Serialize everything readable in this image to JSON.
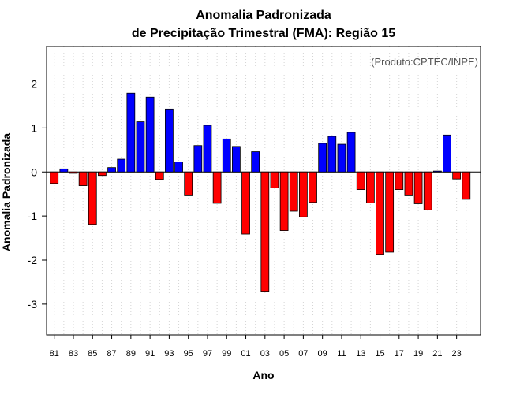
{
  "chart_data": {
    "type": "bar",
    "title": "Anomalia Padronizada",
    "subtitle": "de Precipitação Trimestral (FMA): Região 15",
    "credit": "(Produto:CPTEC/INPE)",
    "xlabel": "Ano",
    "ylabel": "Anomalia Padronizada",
    "ylim": [
      -3.7,
      2.85
    ],
    "yticks": [
      -3,
      -2,
      -1,
      0,
      1,
      2
    ],
    "ytick_labels": [
      "-3",
      "-2",
      "-1",
      "0",
      "1",
      "2"
    ],
    "grid": "vertical dotted",
    "positive_color": "#0000ff",
    "negative_color": "#ff0000",
    "categories": [
      "81",
      "82",
      "83",
      "84",
      "85",
      "86",
      "87",
      "88",
      "89",
      "90",
      "91",
      "92",
      "93",
      "94",
      "95",
      "96",
      "97",
      "98",
      "99",
      "00",
      "01",
      "02",
      "03",
      "04",
      "05",
      "06",
      "07",
      "08",
      "09",
      "10",
      "11",
      "12",
      "13",
      "14",
      "15",
      "16",
      "17",
      "18",
      "19",
      "20",
      "21",
      "22",
      "23",
      "24"
    ],
    "xtick_labels": [
      "81",
      "83",
      "85",
      "87",
      "89",
      "91",
      "93",
      "95",
      "97",
      "99",
      "01",
      "03",
      "05",
      "07",
      "09",
      "11",
      "13",
      "15",
      "17",
      "19",
      "21",
      "23"
    ],
    "values": [
      -0.26,
      0.07,
      -0.03,
      -0.31,
      -1.19,
      -0.08,
      0.1,
      0.29,
      1.79,
      1.14,
      1.7,
      -0.17,
      1.43,
      0.23,
      -0.54,
      0.6,
      1.06,
      -0.71,
      0.75,
      0.58,
      -1.41,
      0.46,
      -2.71,
      -0.36,
      -1.33,
      -0.89,
      -1.02,
      -0.69,
      0.65,
      0.81,
      0.63,
      0.9,
      -0.4,
      -0.7,
      -1.87,
      -1.82,
      -0.4,
      -0.54,
      -0.72,
      -0.86,
      0.02,
      0.84,
      -0.16,
      -0.62
    ]
  }
}
